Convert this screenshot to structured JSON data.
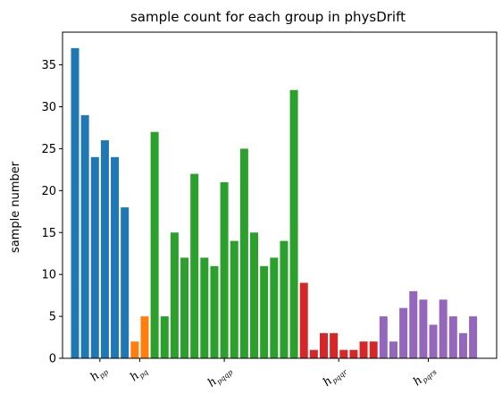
{
  "chart_data": {
    "type": "bar",
    "title": "sample count for each group in physDrift",
    "ylabel": "sample number",
    "xlabel": "",
    "ylim": [
      0,
      38.9
    ],
    "yticks": [
      0,
      5,
      10,
      15,
      20,
      25,
      30,
      35
    ],
    "grid": false,
    "legend": "none",
    "groups": [
      {
        "label": "h",
        "sub": "pp",
        "color": "#1f77b4",
        "values": [
          37,
          29,
          24,
          26,
          24,
          18
        ]
      },
      {
        "label": "h",
        "sub": "pq",
        "color": "#ff7f0e",
        "values": [
          2,
          5
        ]
      },
      {
        "label": "h",
        "sub": "pqqp",
        "color": "#2ca02c",
        "values": [
          27,
          5,
          15,
          12,
          22,
          12,
          11,
          21,
          14,
          25,
          15,
          11,
          12,
          14,
          32
        ]
      },
      {
        "label": "h",
        "sub": "pqqr",
        "color": "#d62728",
        "values": [
          9,
          1,
          3,
          3,
          1,
          1,
          2,
          2
        ]
      },
      {
        "label": "h",
        "sub": "pqrs",
        "color": "#9467bd",
        "values": [
          5,
          2,
          6,
          8,
          7,
          4,
          7,
          5,
          3,
          5
        ]
      }
    ]
  }
}
